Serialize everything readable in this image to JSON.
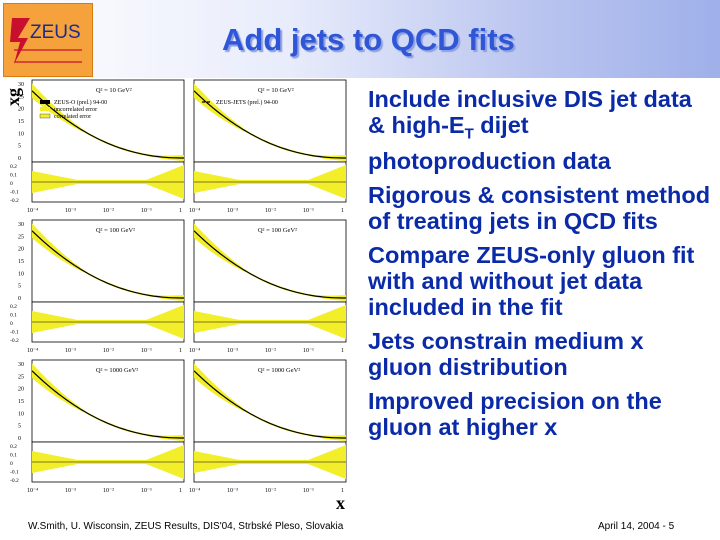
{
  "header": {
    "logo_text": "ZEUS",
    "title": "Add jets to QCD fits"
  },
  "figure": {
    "y_axis_label": "xg",
    "x_axis_label": "x",
    "rows": [
      {
        "q2_left": "Q² = 10 GeV²",
        "q2_right": "Q² = 10 GeV²"
      },
      {
        "q2_left": "Q² = 100 GeV²",
        "q2_right": "Q² = 100 GeV²"
      },
      {
        "q2_left": "Q² = 1000 GeV²",
        "q2_right": "Q² = 1000 GeV²"
      }
    ],
    "legend_left": [
      "ZEUS-O (prel.) 94-00",
      "uncorrelated error",
      "correlated error"
    ],
    "legend_right": "ZEUS-JETS (prel.) 94-00",
    "y_ticks_main": [
      "30",
      "25",
      "20",
      "15",
      "10",
      "5",
      "0"
    ],
    "y_ticks_ratio": [
      "0.2",
      "0.1",
      "0",
      "-0.1",
      "-0.2"
    ],
    "x_ticks": [
      "10⁻⁴",
      "10⁻³",
      "10⁻²",
      "10⁻¹",
      "1"
    ]
  },
  "bullets": [
    {
      "before": "Include inclusive DIS jet data & high-E",
      "sub": "T",
      "after": " dijet photoproduction data"
    },
    {
      "text": "Rigorous & consistent method of treating jets in QCD fits"
    },
    {
      "text": "Compare ZEUS-only gluon fit with and without jet data included in the fit"
    },
    {
      "text": "Jets constrain medium x gluon distribution"
    },
    {
      "text": "Improved precision on the gluon at higher x"
    }
  ],
  "footer": {
    "left": "W.Smith, U. Wisconsin, ZEUS Results, DIS'04, Strbské Pleso, Slovakia",
    "right": "April 14, 2004 - 5"
  },
  "colors": {
    "title": "#2f56d6",
    "bullets": "#0a2aa8",
    "band": "#f2ee2a",
    "logo": "#f6a23c"
  }
}
